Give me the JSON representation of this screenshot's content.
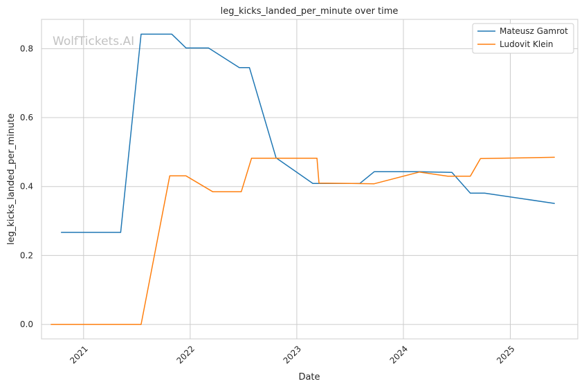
{
  "chart_data": {
    "type": "line",
    "title": "leg_kicks_landed_per_minute over time",
    "xlabel": "Date",
    "ylabel": "leg_kicks_landed_per_minute",
    "watermark": "WolfTickets.AI",
    "xlim": [
      "2020-08-10",
      "2025-08-20"
    ],
    "ylim": [
      -0.042,
      0.885
    ],
    "x_ticks": [
      "2021-01-01",
      "2022-01-01",
      "2023-01-01",
      "2024-01-01",
      "2025-01-01"
    ],
    "x_tick_labels": [
      "2021",
      "2022",
      "2023",
      "2024",
      "2025"
    ],
    "y_ticks": [
      0.0,
      0.2,
      0.4,
      0.6,
      0.8
    ],
    "y_tick_labels": [
      "0.0",
      "0.2",
      "0.4",
      "0.6",
      "0.8"
    ],
    "grid": true,
    "legend_position": "top-right",
    "series": [
      {
        "name": "Mateusz Gamrot",
        "color": "#1f77b4",
        "points": [
          [
            "2020-10-17",
            0.267
          ],
          [
            "2021-05-08",
            0.267
          ],
          [
            "2021-07-17",
            0.842
          ],
          [
            "2021-10-30",
            0.842
          ],
          [
            "2021-12-18",
            0.802
          ],
          [
            "2022-03-05",
            0.802
          ],
          [
            "2022-06-18",
            0.745
          ],
          [
            "2022-07-23",
            0.745
          ],
          [
            "2022-10-22",
            0.483
          ],
          [
            "2023-02-25",
            0.409
          ],
          [
            "2023-08-05",
            0.409
          ],
          [
            "2023-09-23",
            0.443
          ],
          [
            "2024-02-24",
            0.443
          ],
          [
            "2024-06-15",
            0.441
          ],
          [
            "2024-08-17",
            0.381
          ],
          [
            "2024-10-05",
            0.381
          ],
          [
            "2025-06-01",
            0.351
          ]
        ]
      },
      {
        "name": "Ludovit Klein",
        "color": "#ff7f0e",
        "points": [
          [
            "2020-09-12",
            0.0
          ],
          [
            "2021-07-17",
            0.0
          ],
          [
            "2021-10-23",
            0.431
          ],
          [
            "2021-12-18",
            0.431
          ],
          [
            "2022-03-19",
            0.385
          ],
          [
            "2022-06-25",
            0.385
          ],
          [
            "2022-07-30",
            0.482
          ],
          [
            "2023-03-11",
            0.482
          ],
          [
            "2023-03-18",
            0.41
          ],
          [
            "2023-09-23",
            0.408
          ],
          [
            "2024-02-24",
            0.442
          ],
          [
            "2024-06-01",
            0.43
          ],
          [
            "2024-08-17",
            0.43
          ],
          [
            "2024-09-21",
            0.481
          ],
          [
            "2025-06-01",
            0.485
          ]
        ]
      }
    ]
  }
}
